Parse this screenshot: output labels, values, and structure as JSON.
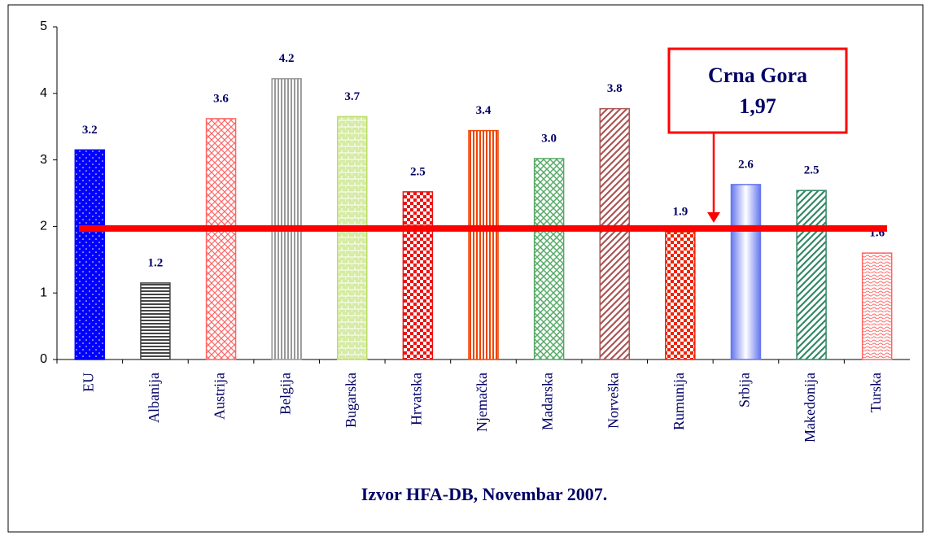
{
  "chart_data": {
    "type": "bar",
    "categories": [
      "EU",
      "Albanija",
      "Austrija",
      "Belgija",
      "Bugarska",
      "Hrvatska",
      "Njemačka",
      "Madarska",
      "Norveška",
      "Rumunija",
      "Srbija",
      "Makedonija",
      "Turska"
    ],
    "values": [
      3.15,
      1.15,
      3.62,
      4.22,
      3.65,
      2.52,
      3.44,
      3.02,
      3.77,
      1.92,
      2.63,
      2.54,
      1.6
    ],
    "value_labels": [
      "3.2",
      "1.2",
      "3.6",
      "4.2",
      "3.7",
      "2.5",
      "3.4",
      "3.0",
      "3.8",
      "1.9",
      "2.6",
      "2.5",
      "1.6"
    ],
    "colors": [
      "#0000ff",
      "#444444",
      "#ff6666",
      "#999999",
      "#bbdd66",
      "#ee1111",
      "#ee4400",
      "#55aa66",
      "#aa5555",
      "#ee2200",
      "#6677ee",
      "#338866",
      "#ff6666"
    ],
    "hatches": [
      "dots",
      "hlines",
      "cross",
      "vlines",
      "brick",
      "checker",
      "vlines",
      "weave",
      "diag",
      "checker",
      "gradient",
      "diag",
      "waves"
    ],
    "ylim": [
      0,
      5
    ],
    "yticks": [
      0,
      1,
      2,
      3,
      4,
      5
    ],
    "x_label": "Izvor HFA-DB, Novembar 2007.",
    "reference_line": {
      "value": 1.97,
      "color": "#ff0000",
      "name": "Crna Gora",
      "label": "1,97"
    }
  }
}
